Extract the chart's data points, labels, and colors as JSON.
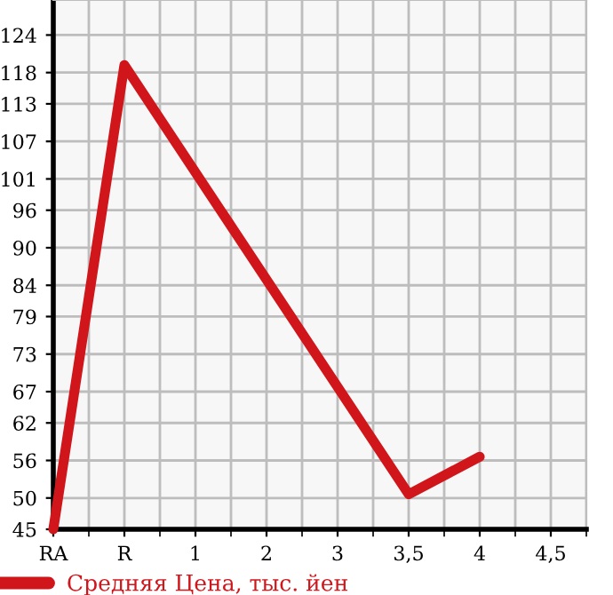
{
  "chart_data": {
    "type": "line",
    "categories": [
      "RA",
      "R",
      "1",
      "2",
      "3",
      "3,5",
      "4",
      "4,5"
    ],
    "series": [
      {
        "name": "Средняя Цена, тыс. йен",
        "color": "#d0161b",
        "values": [
          45,
          119.2,
          null,
          null,
          null,
          50.6,
          56.6,
          null
        ]
      }
    ],
    "ylim": [
      45,
      129.6
    ],
    "yticks": [
      45,
      50,
      56,
      62,
      67,
      73,
      79,
      84,
      90,
      96,
      101,
      107,
      113,
      118,
      124
    ],
    "grid": true,
    "legend": "bottom left",
    "marker": "none",
    "line_style": "solid"
  }
}
